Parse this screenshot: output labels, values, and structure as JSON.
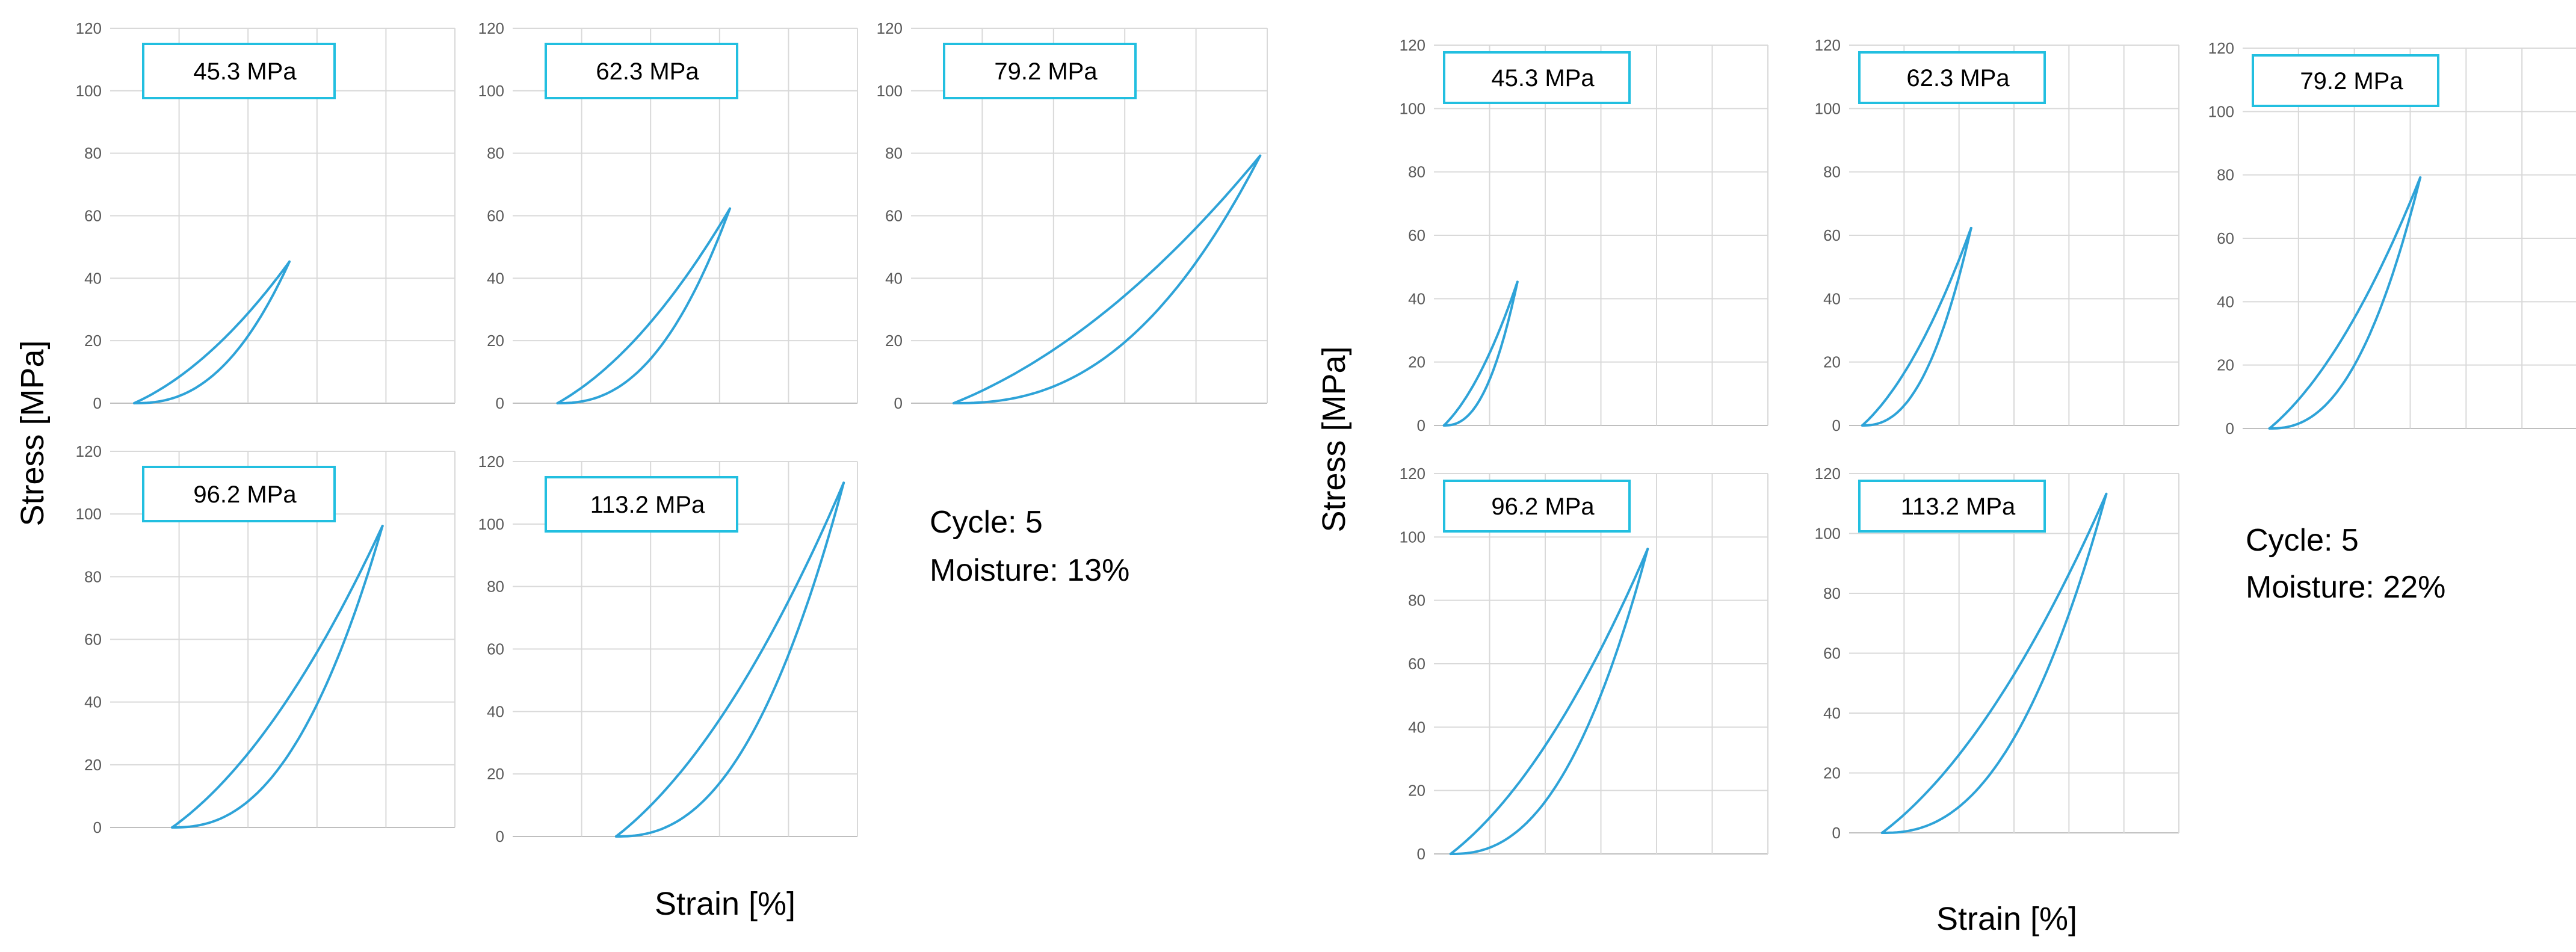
{
  "colors": {
    "curve": "#2ea3d8",
    "label_box_border": "#22bfe0"
  },
  "groups": [
    {
      "name": "left",
      "xlabel": "Strain [%]",
      "ylabel": "Stress [MPa]",
      "cycle_text": "Cycle: 5",
      "moisture_text": "Moisture: 13%"
    },
    {
      "name": "right",
      "xlabel": "Strain [%]",
      "ylabel": "Stress [MPa]",
      "cycle_text": "Cycle: 5",
      "moisture_text": "Moisture: 22%"
    }
  ],
  "chart_data": [
    {
      "type": "line",
      "group": 0,
      "panel": "top-1",
      "label": "45.3 MPa",
      "ylim": [
        0,
        120
      ],
      "yticks": [
        "0",
        "20",
        "40",
        "60",
        "80",
        "100",
        "120"
      ],
      "peak_stress": 45.3,
      "strain_peak": 0.52,
      "strain_residual": 0.07
    },
    {
      "type": "line",
      "group": 0,
      "panel": "top-2",
      "label": "62.3 MPa",
      "ylim": [
        0,
        120
      ],
      "yticks": [
        "0",
        "20",
        "40",
        "60",
        "80",
        "100",
        "120"
      ],
      "peak_stress": 62.3,
      "strain_peak": 0.63,
      "strain_residual": 0.13
    },
    {
      "type": "line",
      "group": 0,
      "panel": "top-3",
      "label": "79.2 MPa",
      "ylim": [
        0,
        120
      ],
      "yticks": [
        "0",
        "20",
        "40",
        "60",
        "80",
        "100",
        "120"
      ],
      "peak_stress": 79.2,
      "strain_peak": 0.98,
      "strain_residual": 0.12
    },
    {
      "type": "line",
      "group": 0,
      "panel": "bottom-1",
      "label": "96.2 MPa",
      "ylim": [
        0,
        120
      ],
      "yticks": [
        "0",
        "20",
        "40",
        "60",
        "80",
        "100",
        "120"
      ],
      "peak_stress": 96.2,
      "strain_peak": 0.79,
      "strain_residual": 0.18
    },
    {
      "type": "line",
      "group": 0,
      "panel": "bottom-2",
      "label": "113.2 MPa",
      "ylim": [
        0,
        120
      ],
      "yticks": [
        "0",
        "20",
        "40",
        "60",
        "80",
        "100",
        "120"
      ],
      "peak_stress": 113.2,
      "strain_peak": 0.96,
      "strain_residual": 0.3
    },
    {
      "type": "line",
      "group": 1,
      "panel": "top-1",
      "label": "45.3 MPa",
      "ylim": [
        0,
        120
      ],
      "yticks": [
        "0",
        "20",
        "40",
        "60",
        "80",
        "100",
        "120"
      ],
      "peak_stress": 45.3,
      "strain_peak": 0.25,
      "strain_residual": 0.03
    },
    {
      "type": "line",
      "group": 1,
      "panel": "top-2",
      "label": "62.3 MPa",
      "ylim": [
        0,
        120
      ],
      "yticks": [
        "0",
        "20",
        "40",
        "60",
        "80",
        "100",
        "120"
      ],
      "peak_stress": 62.3,
      "strain_peak": 0.37,
      "strain_residual": 0.04
    },
    {
      "type": "line",
      "group": 1,
      "panel": "top-3",
      "label": "79.2 MPa",
      "ylim": [
        0,
        120
      ],
      "yticks": [
        "0",
        "20",
        "40",
        "60",
        "80",
        "100",
        "120"
      ],
      "peak_stress": 79.2,
      "strain_peak": 0.53,
      "strain_residual": 0.08
    },
    {
      "type": "line",
      "group": 1,
      "panel": "bottom-1",
      "label": "96.2 MPa",
      "ylim": [
        0,
        120
      ],
      "yticks": [
        "0",
        "20",
        "40",
        "60",
        "80",
        "100",
        "120"
      ],
      "peak_stress": 96.2,
      "strain_peak": 0.64,
      "strain_residual": 0.05
    },
    {
      "type": "line",
      "group": 1,
      "panel": "bottom-2",
      "label": "113.2 MPa",
      "ylim": [
        0,
        120
      ],
      "yticks": [
        "0",
        "20",
        "40",
        "60",
        "80",
        "100",
        "120"
      ],
      "peak_stress": 113.2,
      "strain_peak": 0.78,
      "strain_residual": 0.1
    }
  ]
}
